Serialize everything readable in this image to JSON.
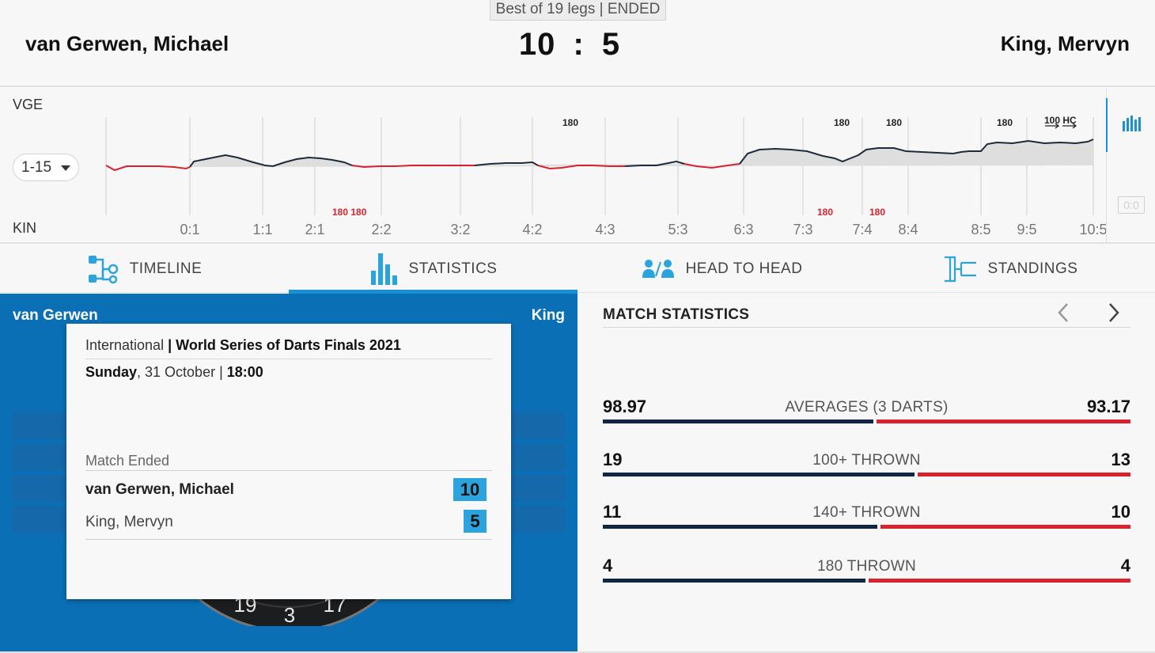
{
  "header": {
    "format_badge": "Best of 19 legs | ENDED",
    "player_home": "van Gerwen, Michael",
    "player_away": "King, Mervyn",
    "score_home": "10",
    "score_sep": ":",
    "score_away": "5"
  },
  "chart": {
    "home_code": "VGE",
    "away_code": "KIN",
    "leg_range": "1-15",
    "reset_label": "0:0",
    "x_ticks": [
      "0:1",
      "1:1",
      "2:1",
      "2:2",
      "3:2",
      "4:2",
      "4:3",
      "5:3",
      "6:3",
      "7:3",
      "7:4",
      "8:4",
      "8:5",
      "9:5",
      "10:5"
    ],
    "home_markers": [
      "180",
      "180",
      "180",
      "180",
      "100 HC"
    ],
    "away_markers": [
      "180 180",
      "180",
      "180"
    ]
  },
  "tabs": [
    {
      "label": "TIMELINE",
      "icon": "timeline-icon"
    },
    {
      "label": "STATISTICS",
      "icon": "statistics-icon"
    },
    {
      "label": "HEAD TO HEAD",
      "icon": "head-to-head-icon"
    },
    {
      "label": "STANDINGS",
      "icon": "standings-icon"
    }
  ],
  "board_panel": {
    "home_short": "van Gerwen",
    "away_short": "King",
    "board_numbers": [
      "19",
      "3",
      "17"
    ]
  },
  "match_card": {
    "category": "International",
    "separator": "|",
    "tournament": "World Series of Darts Finals 2021",
    "day": "Sunday",
    "date": ", 31 October |",
    "time": "18:00",
    "status": "Match Ended",
    "home_name": "van Gerwen, Michael",
    "home_score": "10",
    "away_name": "King, Mervyn",
    "away_score": "5"
  },
  "stats": {
    "title": "MATCH STATISTICS",
    "rows": [
      {
        "label": "AVERAGES (3 DARTS)",
        "home": "98.97",
        "away": "93.17",
        "home_value": 98.97,
        "away_value": 93.17
      },
      {
        "label": "100+ THROWN",
        "home": "19",
        "away": "13",
        "home_value": 19,
        "away_value": 13
      },
      {
        "label": "140+ THROWN",
        "home": "11",
        "away": "10",
        "home_value": 11,
        "away_value": 10
      },
      {
        "label": "180 THROWN",
        "home": "4",
        "away": "4",
        "home_value": 4,
        "away_value": 4
      }
    ]
  },
  "colors": {
    "accent_blue": "#1a8fd1",
    "panel_blue": "#0b6fb5",
    "home_bar": "#0f2740",
    "away_bar": "#d8222f"
  }
}
